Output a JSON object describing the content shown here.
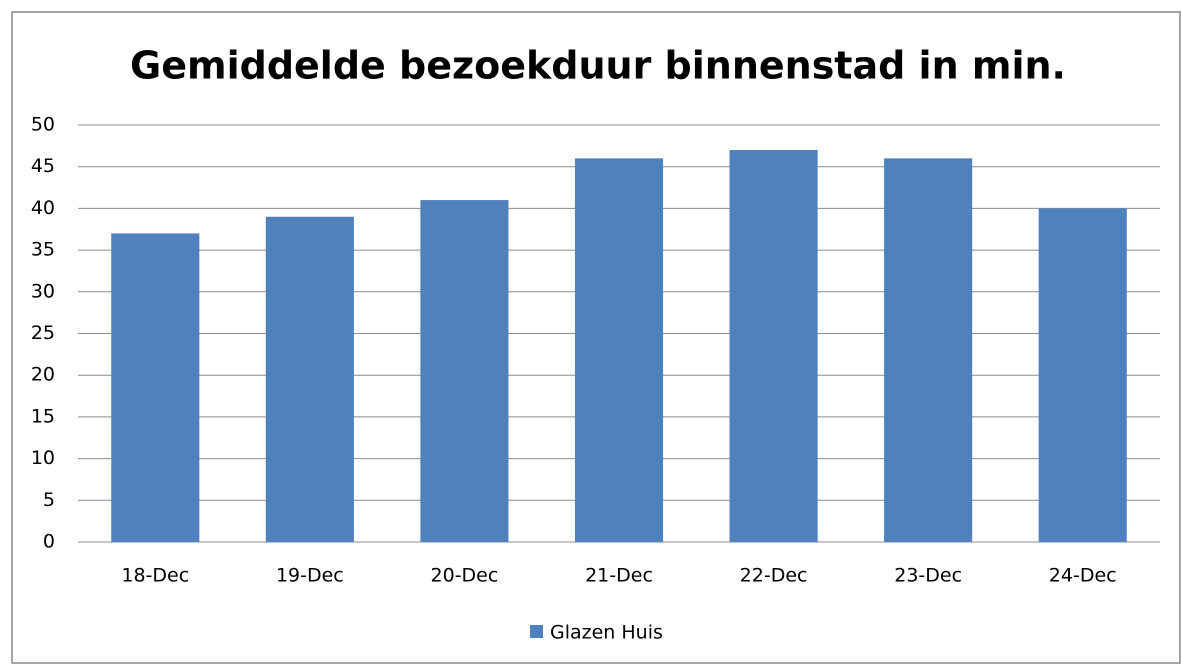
{
  "chart_data": {
    "type": "bar",
    "title": "Gemiddelde bezoekduur binnenstad in min.",
    "categories": [
      "18-Dec",
      "19-Dec",
      "20-Dec",
      "21-Dec",
      "22-Dec",
      "23-Dec",
      "24-Dec"
    ],
    "series": [
      {
        "name": "Glazen Huis",
        "color": "#4f81bd",
        "values": [
          37,
          39,
          41,
          46,
          47,
          46,
          40
        ]
      }
    ],
    "ylim": [
      0,
      50
    ],
    "yticks": [
      0,
      5,
      10,
      15,
      20,
      25,
      30,
      35,
      40,
      45,
      50
    ],
    "grid": true,
    "legend": "bottom"
  }
}
